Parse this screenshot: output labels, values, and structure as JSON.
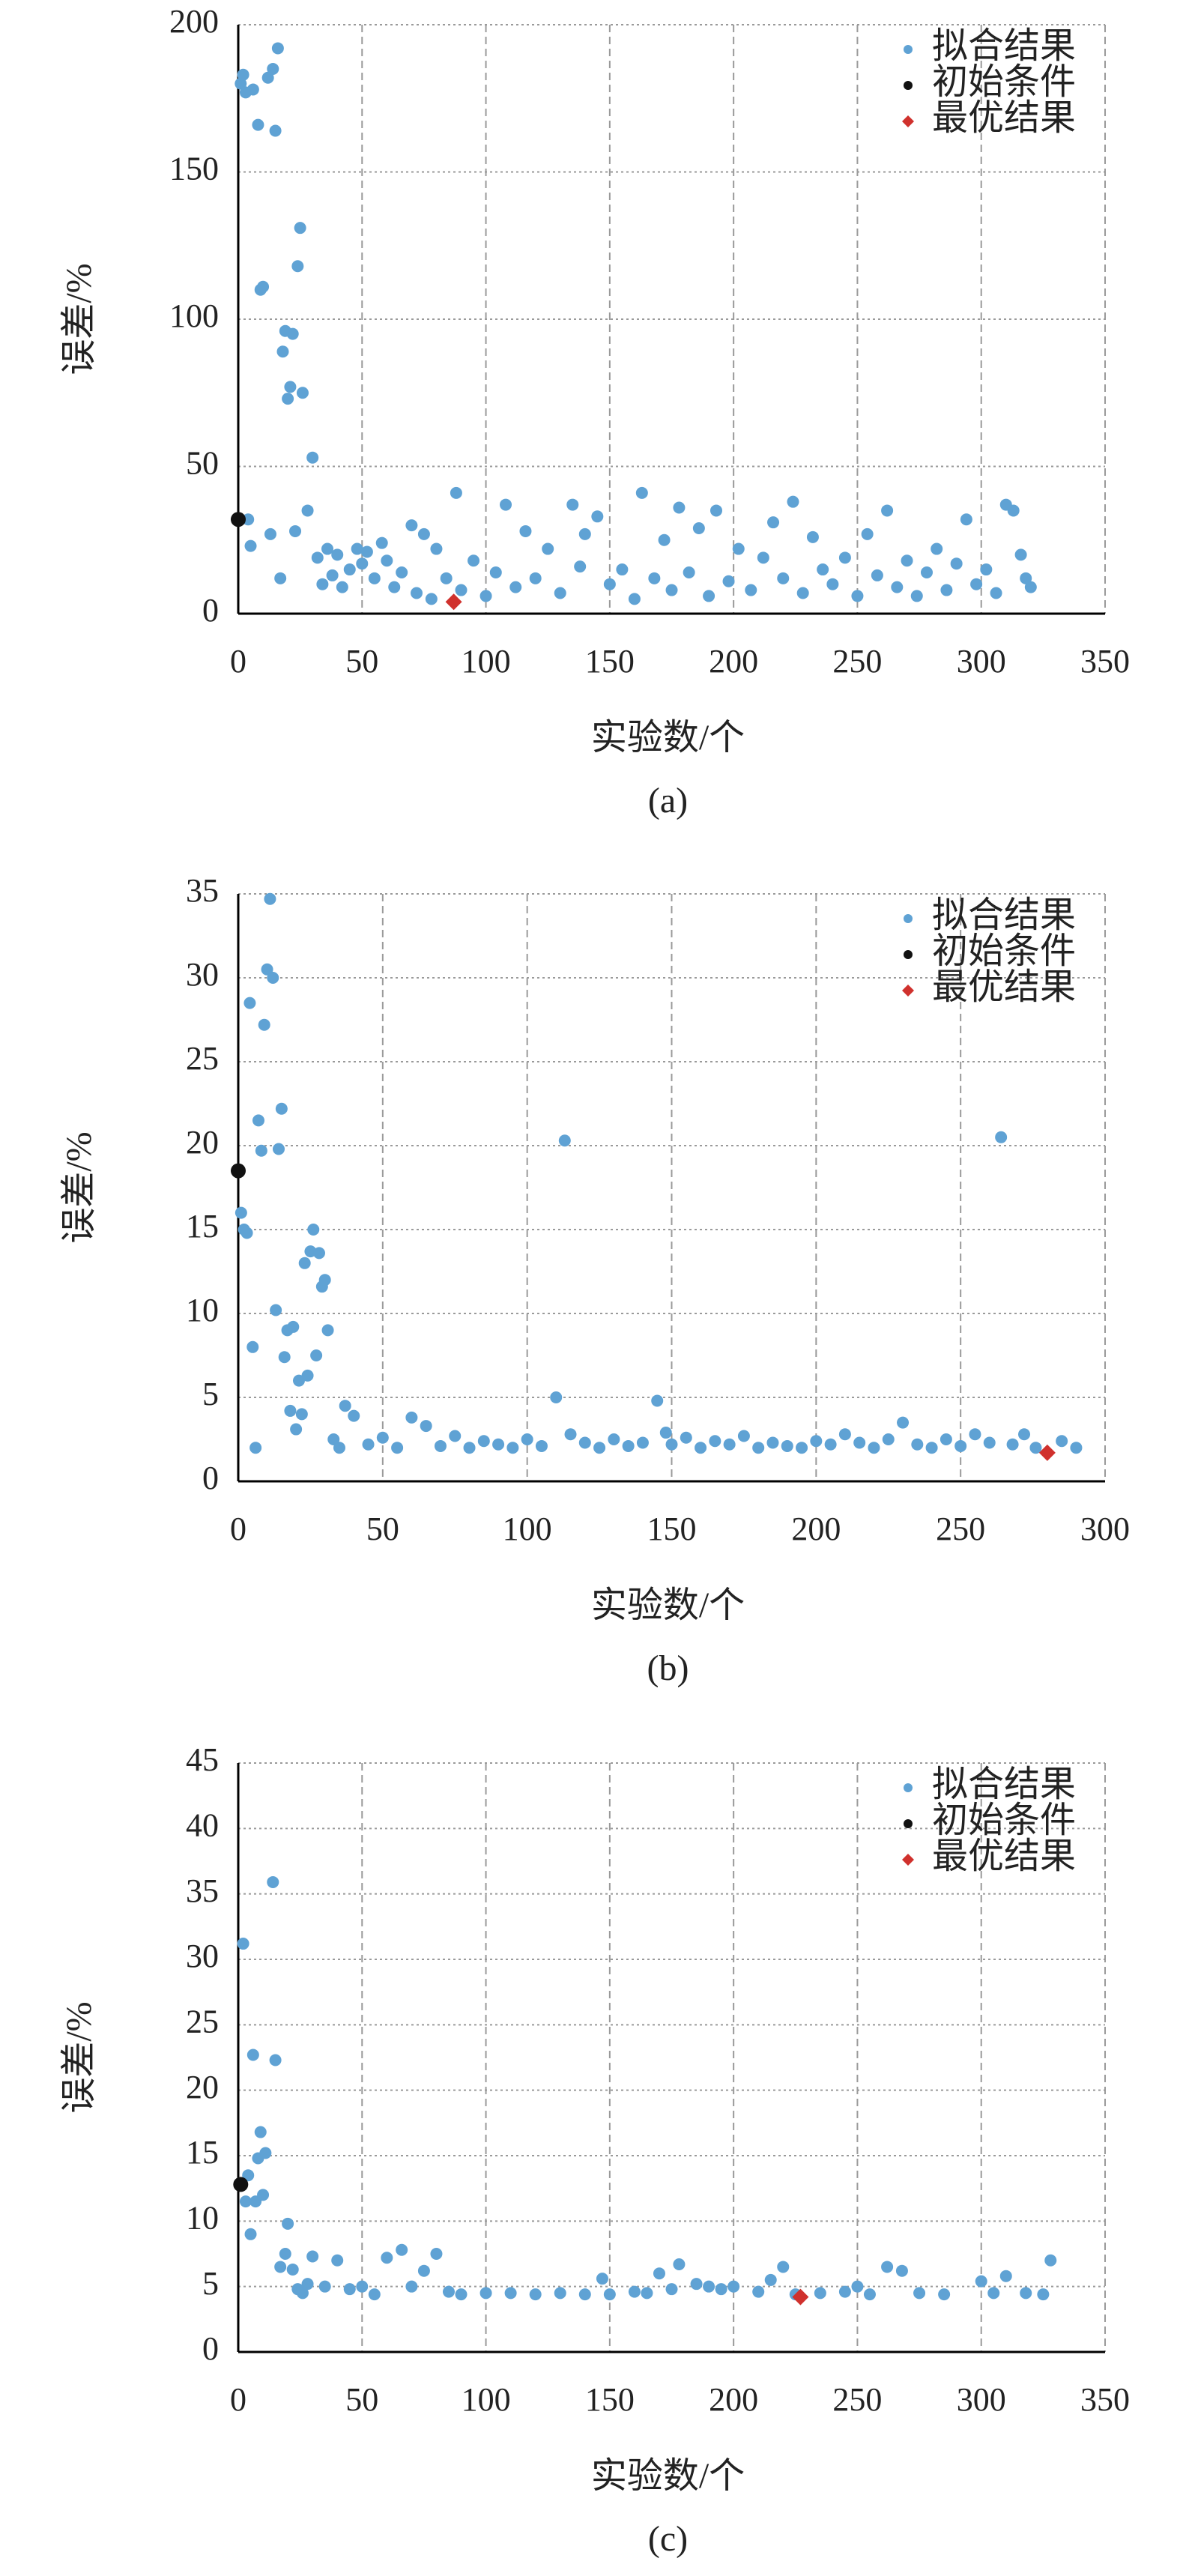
{
  "chart_data": [
    {
      "type": "scatter",
      "xlabel": "实验数/个",
      "ylabel": "误差/%",
      "caption": "(a)",
      "xlim": [
        0,
        350
      ],
      "xticks": [
        0,
        50,
        100,
        150,
        200,
        250,
        300,
        350
      ],
      "ylim": [
        0,
        200
      ],
      "yticks": [
        0,
        50,
        100,
        150,
        200
      ],
      "grid": true,
      "legend": "upper right",
      "series": [
        {
          "name": "拟合结果",
          "color": "#5fa2d4",
          "x": [
            1,
            2,
            3,
            4,
            5,
            6,
            8,
            9,
            10,
            12,
            13,
            14,
            15,
            16,
            17,
            18,
            19,
            20,
            21,
            22,
            23,
            24,
            25,
            26,
            28,
            30,
            32,
            34,
            36,
            38,
            40,
            42,
            45,
            48,
            50,
            52,
            55,
            58,
            60,
            63,
            66,
            70,
            72,
            75,
            78,
            80,
            84,
            88,
            90,
            95,
            100,
            104,
            108,
            112,
            116,
            120,
            125,
            130,
            135,
            138,
            140,
            145,
            150,
            155,
            160,
            163,
            168,
            172,
            175,
            178,
            182,
            186,
            190,
            193,
            198,
            202,
            207,
            212,
            216,
            220,
            224,
            228,
            232,
            236,
            240,
            245,
            250,
            254,
            258,
            262,
            266,
            270,
            274,
            278,
            282,
            286,
            290,
            294,
            298,
            302,
            306,
            310,
            313,
            316,
            318,
            320
          ],
          "values": [
            180,
            183,
            177,
            32,
            23,
            178,
            166,
            110,
            111,
            182,
            27,
            185,
            164,
            192,
            12,
            89,
            96,
            73,
            77,
            95,
            28,
            118,
            131,
            75,
            35,
            53,
            19,
            10,
            22,
            13,
            20,
            9,
            15,
            22,
            17,
            21,
            12,
            24,
            18,
            9,
            14,
            30,
            7,
            27,
            5,
            22,
            12,
            41,
            8,
            18,
            6,
            14,
            37,
            9,
            28,
            12,
            22,
            7,
            37,
            16,
            27,
            33,
            10,
            15,
            5,
            41,
            12,
            25,
            8,
            36,
            14,
            29,
            6,
            35,
            11,
            22,
            8,
            19,
            31,
            12,
            38,
            7,
            26,
            15,
            10,
            19,
            6,
            27,
            13,
            35,
            9,
            18,
            6,
            14,
            22,
            8,
            17,
            32,
            10,
            15,
            7,
            37,
            35,
            20,
            12,
            9
          ]
        },
        {
          "name": "初始条件",
          "color": "#111111",
          "x": [
            0
          ],
          "values": [
            32
          ]
        },
        {
          "name": "最优结果",
          "color": "#d0312d",
          "x": [
            87
          ],
          "values": [
            4
          ]
        }
      ]
    },
    {
      "type": "scatter",
      "xlabel": "实验数/个",
      "ylabel": "误差/%",
      "caption": "(b)",
      "xlim": [
        0,
        300
      ],
      "xticks": [
        0,
        50,
        100,
        150,
        200,
        250,
        300
      ],
      "ylim": [
        0,
        35
      ],
      "yticks": [
        0,
        5,
        10,
        15,
        20,
        25,
        30,
        35
      ],
      "grid": true,
      "legend": "upper right",
      "series": [
        {
          "name": "拟合结果",
          "color": "#5fa2d4",
          "x": [
            1,
            2,
            3,
            4,
            5,
            6,
            7,
            8,
            9,
            10,
            11,
            12,
            13,
            14,
            15,
            16,
            17,
            18,
            19,
            20,
            21,
            22,
            23,
            24,
            25,
            26,
            27,
            28,
            29,
            30,
            31,
            33,
            35,
            37,
            40,
            45,
            50,
            55,
            60,
            65,
            70,
            75,
            80,
            85,
            90,
            95,
            100,
            105,
            110,
            113,
            115,
            120,
            125,
            130,
            135,
            140,
            145,
            148,
            150,
            155,
            160,
            165,
            170,
            175,
            180,
            185,
            190,
            195,
            200,
            205,
            210,
            215,
            220,
            225,
            230,
            235,
            240,
            245,
            250,
            255,
            260,
            264,
            268,
            272,
            276,
            285,
            290
          ],
          "values": [
            16,
            15,
            14.8,
            28.5,
            8,
            2,
            21.5,
            19.7,
            27.2,
            30.5,
            34.7,
            30,
            10.2,
            19.8,
            22.2,
            7.4,
            9,
            4.2,
            9.2,
            3.1,
            6,
            4,
            13,
            6.3,
            13.7,
            15,
            7.5,
            13.6,
            11.6,
            12,
            9,
            2.5,
            2,
            4.5,
            3.9,
            2.2,
            2.6,
            2,
            3.8,
            3.3,
            2.1,
            2.7,
            2,
            2.4,
            2.2,
            2,
            2.5,
            2.1,
            5,
            20.3,
            2.8,
            2.3,
            2,
            2.5,
            2.1,
            2.3,
            4.8,
            2.9,
            2.2,
            2.6,
            2,
            2.4,
            2.2,
            2.7,
            2,
            2.3,
            2.1,
            2,
            2.4,
            2.2,
            2.8,
            2.3,
            2,
            2.5,
            3.5,
            2.2,
            2,
            2.5,
            2.1,
            2.8,
            2.3,
            20.5,
            2.2,
            2.8,
            2,
            2.4,
            2
          ]
        },
        {
          "name": "初始条件",
          "color": "#111111",
          "x": [
            0
          ],
          "values": [
            18.5
          ]
        },
        {
          "name": "最优结果",
          "color": "#d0312d",
          "x": [
            280
          ],
          "values": [
            1.7
          ]
        }
      ]
    },
    {
      "type": "scatter",
      "xlabel": "实验数/个",
      "ylabel": "误差/%",
      "caption": "(c)",
      "xlim": [
        0,
        350
      ],
      "xticks": [
        0,
        50,
        100,
        150,
        200,
        250,
        300,
        350
      ],
      "ylim": [
        0,
        45
      ],
      "yticks": [
        0,
        5,
        10,
        15,
        20,
        25,
        30,
        35,
        40,
        45
      ],
      "grid": true,
      "legend": "upper right",
      "series": [
        {
          "name": "拟合结果",
          "color": "#5fa2d4",
          "x": [
            2,
            3,
            4,
            5,
            6,
            7,
            8,
            9,
            10,
            11,
            14,
            15,
            17,
            19,
            20,
            22,
            24,
            26,
            28,
            30,
            35,
            40,
            45,
            50,
            55,
            60,
            66,
            70,
            75,
            80,
            85,
            90,
            100,
            110,
            120,
            130,
            140,
            147,
            150,
            160,
            165,
            170,
            175,
            178,
            185,
            190,
            195,
            200,
            210,
            215,
            220,
            225,
            235,
            245,
            250,
            255,
            262,
            268,
            275,
            285,
            300,
            305,
            310,
            318,
            325,
            328
          ],
          "values": [
            31.2,
            11.5,
            13.5,
            9,
            22.7,
            11.5,
            14.8,
            16.8,
            12,
            15.2,
            35.9,
            22.3,
            6.5,
            7.5,
            9.8,
            6.3,
            4.8,
            4.5,
            5.2,
            7.3,
            5,
            7,
            4.8,
            5,
            4.4,
            7.2,
            7.8,
            5,
            6.2,
            7.5,
            4.6,
            4.4,
            4.5,
            4.5,
            4.4,
            4.5,
            4.4,
            5.6,
            4.4,
            4.6,
            4.5,
            6,
            4.8,
            6.7,
            5.2,
            5,
            4.8,
            5,
            4.6,
            5.5,
            6.5,
            4.4,
            4.5,
            4.6,
            5,
            4.4,
            6.5,
            6.2,
            4.5,
            4.4,
            5.4,
            4.5,
            5.8,
            4.5,
            4.4,
            7
          ]
        },
        {
          "name": "初始条件",
          "color": "#111111",
          "x": [
            1
          ],
          "values": [
            12.8
          ]
        },
        {
          "name": "最优结果",
          "color": "#d0312d",
          "x": [
            227
          ],
          "values": [
            4.2
          ]
        }
      ]
    }
  ]
}
